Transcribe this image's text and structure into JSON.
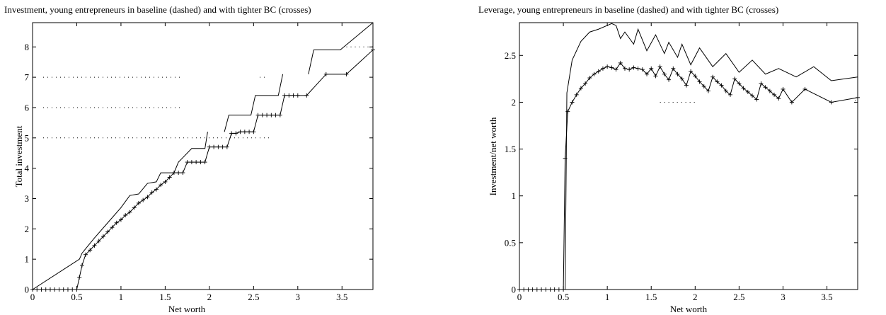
{
  "chart_data": [
    {
      "type": "line",
      "title": "Investment, young entrepreneurs in baseline (dashed) and with tighter BC (crosses)",
      "xlabel": "Net worth",
      "ylabel": "Total investment",
      "xlim": [
        0,
        3.85
      ],
      "ylim": [
        0,
        8.8
      ],
      "xticks": [
        0,
        0.5,
        1,
        1.5,
        2,
        2.5,
        3,
        3.5
      ],
      "xtick_labels": [
        "0",
        "0.5",
        "1",
        "1.5",
        "2",
        "2.5",
        "3",
        "3.5"
      ],
      "yticks": [
        0,
        1,
        2,
        3,
        4,
        5,
        6,
        7,
        8
      ],
      "ytick_labels": [
        "0",
        "1",
        "2",
        "3",
        "4",
        "5",
        "6",
        "7",
        "8"
      ],
      "grid": false,
      "series": [
        {
          "style": "solid",
          "x": [
            0.0,
            0.53,
            0.56,
            0.7,
            0.85,
            1.0,
            1.1,
            1.2,
            1.3,
            1.4,
            1.45,
            1.6,
            1.65,
            1.8,
            1.95,
            1.98
          ],
          "y": [
            0.0,
            1.0,
            1.2,
            1.7,
            2.2,
            2.7,
            3.1,
            3.15,
            3.5,
            3.55,
            3.85,
            3.85,
            4.2,
            4.65,
            4.65,
            5.2
          ]
        },
        {
          "style": "solid",
          "x": [
            2.17,
            2.22,
            2.47,
            2.52,
            2.78,
            2.83
          ],
          "y": [
            5.2,
            5.75,
            5.75,
            6.4,
            6.4,
            7.1
          ]
        },
        {
          "style": "solid",
          "x": [
            3.12,
            3.18,
            3.48,
            3.85
          ],
          "y": [
            7.1,
            7.9,
            7.9,
            8.8
          ]
        },
        {
          "style": "crosses",
          "x": [
            0.0,
            0.05,
            0.1,
            0.15,
            0.2,
            0.25,
            0.3,
            0.35,
            0.4,
            0.45,
            0.5,
            0.53,
            0.56,
            0.6,
            0.65,
            0.7,
            0.75,
            0.8,
            0.85,
            0.9,
            0.95,
            1.0,
            1.05,
            1.1,
            1.15,
            1.2,
            1.25,
            1.3,
            1.35,
            1.4,
            1.45,
            1.5,
            1.55,
            1.6,
            1.65,
            1.7,
            1.75,
            1.8,
            1.85,
            1.9,
            1.95,
            2.0,
            2.05,
            2.1,
            2.15,
            2.2,
            2.25,
            2.3,
            2.35,
            2.4,
            2.45,
            2.5,
            2.55,
            2.6,
            2.65,
            2.7,
            2.75,
            2.8,
            2.85,
            2.9,
            2.95,
            3.0,
            3.1,
            3.32,
            3.55,
            3.85
          ],
          "y": [
            0.0,
            0.0,
            0.0,
            0.0,
            0.0,
            0.0,
            0.0,
            0.0,
            0.0,
            0.0,
            0.0,
            0.4,
            0.8,
            1.15,
            1.3,
            1.45,
            1.6,
            1.75,
            1.9,
            2.05,
            2.2,
            2.3,
            2.45,
            2.55,
            2.7,
            2.85,
            2.95,
            3.05,
            3.2,
            3.3,
            3.45,
            3.55,
            3.7,
            3.85,
            3.85,
            3.85,
            4.2,
            4.2,
            4.2,
            4.2,
            4.2,
            4.7,
            4.7,
            4.7,
            4.7,
            4.7,
            5.15,
            5.15,
            5.2,
            5.2,
            5.2,
            5.2,
            5.75,
            5.75,
            5.75,
            5.75,
            5.75,
            5.75,
            6.4,
            6.4,
            6.4,
            6.4,
            6.4,
            7.1,
            7.1,
            7.9
          ]
        },
        {
          "style": "dotted",
          "segments": [
            {
              "x": [
                0.12,
                1.7
              ],
              "y": [
                7.0,
                7.0
              ]
            },
            {
              "x": [
                2.57,
                2.65
              ],
              "y": [
                7.0,
                7.0
              ]
            },
            {
              "x": [
                0.12,
                1.7
              ],
              "y": [
                6.0,
                6.0
              ]
            },
            {
              "x": [
                0.12,
                2.68
              ],
              "y": [
                5.0,
                5.0
              ]
            },
            {
              "x": [
                3.55,
                3.85
              ],
              "y": [
                8.0,
                8.0
              ]
            }
          ]
        }
      ]
    },
    {
      "type": "line",
      "title": "Leverage, young entrepreneurs in baseline (dashed) and with tighter BC (crosses)",
      "xlabel": "Net worth",
      "ylabel": "Investment/net worth",
      "xlim": [
        0,
        3.85
      ],
      "ylim": [
        0,
        2.85
      ],
      "xticks": [
        0,
        0.5,
        1,
        1.5,
        2,
        2.5,
        3,
        3.5
      ],
      "xtick_labels": [
        "0",
        "0.5",
        "1",
        "1.5",
        "2",
        "2.5",
        "3",
        "3.5"
      ],
      "yticks": [
        0,
        0.5,
        1,
        1.5,
        2,
        2.5
      ],
      "ytick_labels": [
        "0",
        "0.5",
        "1",
        "1.5",
        "2",
        "2.5"
      ],
      "grid": false,
      "series": [
        {
          "style": "solid",
          "x": [
            0.0,
            0.52,
            0.54,
            0.6,
            0.7,
            0.8,
            0.9,
            1.0,
            1.05,
            1.1,
            1.15,
            1.2,
            1.3,
            1.35,
            1.45,
            1.55,
            1.65,
            1.7,
            1.8,
            1.85,
            1.95,
            2.05,
            2.2,
            2.35,
            2.5,
            2.65,
            2.8,
            2.95,
            3.15,
            3.35,
            3.55,
            3.85
          ],
          "y": [
            0.0,
            0.0,
            2.1,
            2.45,
            2.65,
            2.75,
            2.78,
            2.82,
            2.84,
            2.82,
            2.68,
            2.75,
            2.62,
            2.78,
            2.55,
            2.72,
            2.52,
            2.64,
            2.48,
            2.62,
            2.4,
            2.58,
            2.38,
            2.52,
            2.32,
            2.45,
            2.3,
            2.36,
            2.27,
            2.38,
            2.23,
            2.27
          ]
        },
        {
          "style": "crosses",
          "x": [
            0.0,
            0.05,
            0.1,
            0.15,
            0.2,
            0.25,
            0.3,
            0.35,
            0.4,
            0.45,
            0.5,
            0.52,
            0.55,
            0.6,
            0.65,
            0.7,
            0.75,
            0.8,
            0.85,
            0.9,
            0.95,
            1.0,
            1.05,
            1.1,
            1.15,
            1.2,
            1.25,
            1.3,
            1.35,
            1.4,
            1.45,
            1.5,
            1.55,
            1.6,
            1.65,
            1.7,
            1.75,
            1.8,
            1.85,
            1.9,
            1.95,
            2.0,
            2.05,
            2.1,
            2.15,
            2.2,
            2.25,
            2.3,
            2.35,
            2.4,
            2.45,
            2.5,
            2.55,
            2.6,
            2.65,
            2.7,
            2.75,
            2.8,
            2.85,
            2.9,
            2.95,
            3.0,
            3.1,
            3.25,
            3.55,
            3.85
          ],
          "y": [
            0.0,
            0.0,
            0.0,
            0.0,
            0.0,
            0.0,
            0.0,
            0.0,
            0.0,
            0.0,
            0.0,
            1.4,
            1.9,
            2.0,
            2.08,
            2.15,
            2.2,
            2.26,
            2.3,
            2.33,
            2.36,
            2.38,
            2.37,
            2.35,
            2.42,
            2.36,
            2.35,
            2.37,
            2.36,
            2.35,
            2.3,
            2.36,
            2.28,
            2.38,
            2.3,
            2.24,
            2.36,
            2.3,
            2.25,
            2.18,
            2.33,
            2.28,
            2.22,
            2.17,
            2.12,
            2.27,
            2.22,
            2.18,
            2.12,
            2.08,
            2.25,
            2.2,
            2.15,
            2.11,
            2.07,
            2.03,
            2.2,
            2.16,
            2.12,
            2.08,
            2.04,
            2.14,
            2.0,
            2.14,
            2.0,
            2.05
          ]
        },
        {
          "style": "dotted",
          "segments": [
            {
              "x": [
                1.6,
                2.0
              ],
              "y": [
                2.0,
                2.0
              ]
            },
            {
              "x": [
                3.82,
                3.85
              ],
              "y": [
                2.5,
                2.5
              ]
            },
            {
              "x": [
                3.82,
                3.85
              ],
              "y": [
                2.02,
                2.02
              ]
            }
          ]
        }
      ]
    }
  ]
}
